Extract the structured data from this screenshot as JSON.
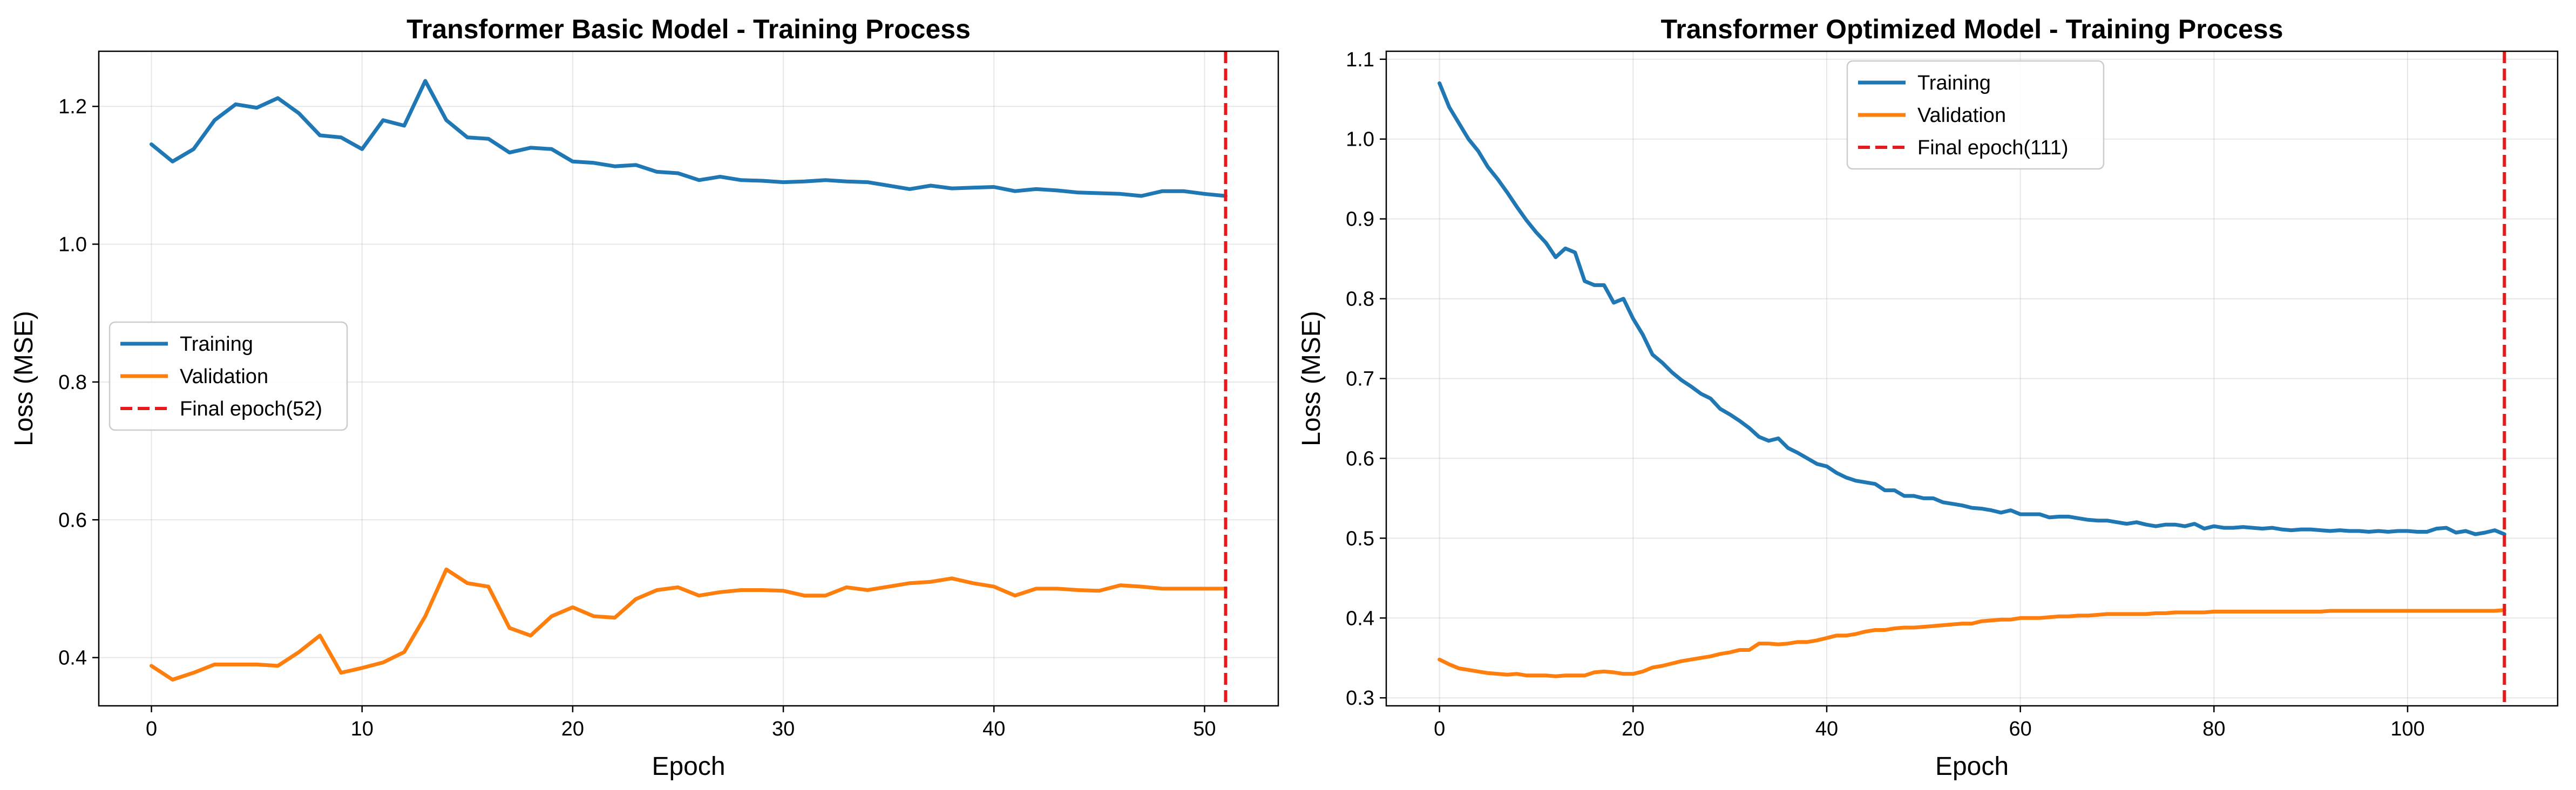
{
  "chart_data": [
    {
      "type": "line",
      "title": "Transformer Basic Model - Training Process",
      "xlabel": "Epoch",
      "ylabel": "Loss (MSE)",
      "xlim": [
        -2.5,
        53.5
      ],
      "ylim": [
        0.33,
        1.28
      ],
      "xticks": [
        0,
        10,
        20,
        30,
        40,
        50
      ],
      "yticks": [
        0.4,
        0.6,
        0.8,
        1.0,
        1.2
      ],
      "ytick_labels": [
        "0.4",
        "0.6",
        "0.8",
        "1.0",
        "1.2"
      ],
      "grid": true,
      "legend_position": "center-left",
      "series": [
        {
          "name": "Training",
          "color": "#1f77b4",
          "x": [
            0,
            1,
            2,
            3,
            4,
            5,
            6,
            7,
            8,
            9,
            10,
            11,
            12,
            13,
            14,
            15,
            16,
            17,
            18,
            19,
            20,
            21,
            22,
            23,
            24,
            25,
            26,
            27,
            28,
            29,
            30,
            31,
            32,
            33,
            34,
            35,
            36,
            37,
            38,
            39,
            40,
            41,
            42,
            43,
            44,
            45,
            46,
            47,
            48,
            49,
            50,
            51
          ],
          "y": [
            1.145,
            1.12,
            1.138,
            1.18,
            1.203,
            1.198,
            1.212,
            1.19,
            1.158,
            1.155,
            1.138,
            1.18,
            1.172,
            1.237,
            1.18,
            1.155,
            1.153,
            1.133,
            1.14,
            1.138,
            1.12,
            1.118,
            1.113,
            1.115,
            1.105,
            1.103,
            1.093,
            1.098,
            1.093,
            1.092,
            1.09,
            1.091,
            1.093,
            1.091,
            1.09,
            1.085,
            1.08,
            1.085,
            1.081,
            1.082,
            1.083,
            1.077,
            1.08,
            1.078,
            1.075,
            1.074,
            1.073,
            1.07,
            1.077,
            1.077,
            1.073,
            1.07
          ]
        },
        {
          "name": "Validation",
          "color": "#ff7f0e",
          "x": [
            0,
            1,
            2,
            3,
            4,
            5,
            6,
            7,
            8,
            9,
            10,
            11,
            12,
            13,
            14,
            15,
            16,
            17,
            18,
            19,
            20,
            21,
            22,
            23,
            24,
            25,
            26,
            27,
            28,
            29,
            30,
            31,
            32,
            33,
            34,
            35,
            36,
            37,
            38,
            39,
            40,
            41,
            42,
            43,
            44,
            45,
            46,
            47,
            48,
            49,
            50,
            51
          ],
          "y": [
            0.388,
            0.368,
            0.378,
            0.39,
            0.39,
            0.39,
            0.388,
            0.408,
            0.432,
            0.378,
            0.385,
            0.393,
            0.408,
            0.46,
            0.528,
            0.508,
            0.503,
            0.443,
            0.432,
            0.46,
            0.473,
            0.46,
            0.458,
            0.485,
            0.498,
            0.502,
            0.49,
            0.495,
            0.498,
            0.498,
            0.497,
            0.49,
            0.49,
            0.502,
            0.498,
            0.503,
            0.508,
            0.51,
            0.515,
            0.508,
            0.503,
            0.49,
            0.5,
            0.5,
            0.498,
            0.497,
            0.505,
            0.503,
            0.5,
            0.5,
            0.5,
            0.5
          ]
        }
      ],
      "vline": {
        "x": 51,
        "label": "Final epoch(52)",
        "color": "#e41a1c",
        "style": "dashed"
      }
    },
    {
      "type": "line",
      "title": "Transformer Optimized Model - Training Process",
      "xlabel": "Epoch",
      "ylabel": "Loss (MSE)",
      "xlim": [
        -5.5,
        115.5
      ],
      "ylim": [
        0.29,
        1.11
      ],
      "xticks": [
        0,
        20,
        40,
        60,
        80,
        100
      ],
      "yticks": [
        0.3,
        0.4,
        0.5,
        0.6,
        0.7,
        0.8,
        0.9,
        1.0,
        1.1
      ],
      "ytick_labels": [
        "0.3",
        "0.4",
        "0.5",
        "0.6",
        "0.7",
        "0.8",
        "0.9",
        "1.0",
        "1.1"
      ],
      "grid": true,
      "legend_position": "upper-center",
      "series": [
        {
          "name": "Training",
          "color": "#1f77b4",
          "x": [
            0,
            1,
            2,
            3,
            4,
            5,
            6,
            7,
            8,
            9,
            10,
            11,
            12,
            13,
            14,
            15,
            16,
            17,
            18,
            19,
            20,
            21,
            22,
            23,
            24,
            25,
            26,
            27,
            28,
            29,
            30,
            31,
            32,
            33,
            34,
            35,
            36,
            37,
            38,
            39,
            40,
            41,
            42,
            43,
            44,
            45,
            46,
            47,
            48,
            49,
            50,
            51,
            52,
            53,
            54,
            55,
            56,
            57,
            58,
            59,
            60,
            61,
            62,
            63,
            64,
            65,
            66,
            67,
            68,
            69,
            70,
            71,
            72,
            73,
            74,
            75,
            76,
            77,
            78,
            79,
            80,
            81,
            82,
            83,
            84,
            85,
            86,
            87,
            88,
            89,
            90,
            91,
            92,
            93,
            94,
            95,
            96,
            97,
            98,
            99,
            100,
            101,
            102,
            103,
            104,
            105,
            106,
            107,
            108,
            109,
            110
          ],
          "y": [
            1.07,
            1.04,
            1.02,
            1.0,
            0.985,
            0.965,
            0.95,
            0.933,
            0.915,
            0.898,
            0.883,
            0.87,
            0.852,
            0.863,
            0.858,
            0.822,
            0.817,
            0.817,
            0.795,
            0.8,
            0.775,
            0.755,
            0.73,
            0.72,
            0.708,
            0.698,
            0.69,
            0.681,
            0.675,
            0.662,
            0.655,
            0.647,
            0.638,
            0.627,
            0.622,
            0.625,
            0.613,
            0.607,
            0.6,
            0.593,
            0.59,
            0.582,
            0.576,
            0.572,
            0.57,
            0.568,
            0.56,
            0.56,
            0.553,
            0.553,
            0.55,
            0.55,
            0.545,
            0.543,
            0.541,
            0.538,
            0.537,
            0.535,
            0.532,
            0.535,
            0.53,
            0.53,
            0.53,
            0.526,
            0.527,
            0.527,
            0.525,
            0.523,
            0.522,
            0.522,
            0.52,
            0.518,
            0.52,
            0.517,
            0.515,
            0.517,
            0.517,
            0.515,
            0.518,
            0.512,
            0.515,
            0.513,
            0.513,
            0.514,
            0.513,
            0.512,
            0.513,
            0.511,
            0.51,
            0.511,
            0.511,
            0.51,
            0.509,
            0.51,
            0.509,
            0.509,
            0.508,
            0.509,
            0.508,
            0.509,
            0.509,
            0.508,
            0.508,
            0.512,
            0.513,
            0.507,
            0.509,
            0.505,
            0.507,
            0.51,
            0.505
          ]
        },
        {
          "name": "Validation",
          "color": "#ff7f0e",
          "x": [
            0,
            1,
            2,
            3,
            4,
            5,
            6,
            7,
            8,
            9,
            10,
            11,
            12,
            13,
            14,
            15,
            16,
            17,
            18,
            19,
            20,
            21,
            22,
            23,
            24,
            25,
            26,
            27,
            28,
            29,
            30,
            31,
            32,
            33,
            34,
            35,
            36,
            37,
            38,
            39,
            40,
            41,
            42,
            43,
            44,
            45,
            46,
            47,
            48,
            49,
            50,
            51,
            52,
            53,
            54,
            55,
            56,
            57,
            58,
            59,
            60,
            61,
            62,
            63,
            64,
            65,
            66,
            67,
            68,
            69,
            70,
            71,
            72,
            73,
            74,
            75,
            76,
            77,
            78,
            79,
            80,
            81,
            82,
            83,
            84,
            85,
            86,
            87,
            88,
            89,
            90,
            91,
            92,
            93,
            94,
            95,
            96,
            97,
            98,
            99,
            100,
            101,
            102,
            103,
            104,
            105,
            106,
            107,
            108,
            109,
            110
          ],
          "y": [
            0.348,
            0.342,
            0.337,
            0.335,
            0.333,
            0.331,
            0.33,
            0.329,
            0.33,
            0.328,
            0.328,
            0.328,
            0.327,
            0.328,
            0.328,
            0.328,
            0.332,
            0.333,
            0.332,
            0.33,
            0.33,
            0.333,
            0.338,
            0.34,
            0.343,
            0.346,
            0.348,
            0.35,
            0.352,
            0.355,
            0.357,
            0.36,
            0.36,
            0.368,
            0.368,
            0.367,
            0.368,
            0.37,
            0.37,
            0.372,
            0.375,
            0.378,
            0.378,
            0.38,
            0.383,
            0.385,
            0.385,
            0.387,
            0.388,
            0.388,
            0.389,
            0.39,
            0.391,
            0.392,
            0.393,
            0.393,
            0.396,
            0.397,
            0.398,
            0.398,
            0.4,
            0.4,
            0.4,
            0.401,
            0.402,
            0.402,
            0.403,
            0.403,
            0.404,
            0.405,
            0.405,
            0.405,
            0.405,
            0.405,
            0.406,
            0.406,
            0.407,
            0.407,
            0.407,
            0.407,
            0.408,
            0.408,
            0.408,
            0.408,
            0.408,
            0.408,
            0.408,
            0.408,
            0.408,
            0.408,
            0.408,
            0.408,
            0.409,
            0.409,
            0.409,
            0.409,
            0.409,
            0.409,
            0.409,
            0.409,
            0.409,
            0.409,
            0.409,
            0.409,
            0.409,
            0.409,
            0.409,
            0.409,
            0.409,
            0.409,
            0.41
          ]
        }
      ],
      "vline": {
        "x": 110,
        "label": "Final epoch(111)",
        "color": "#e41a1c",
        "style": "dashed"
      }
    }
  ]
}
